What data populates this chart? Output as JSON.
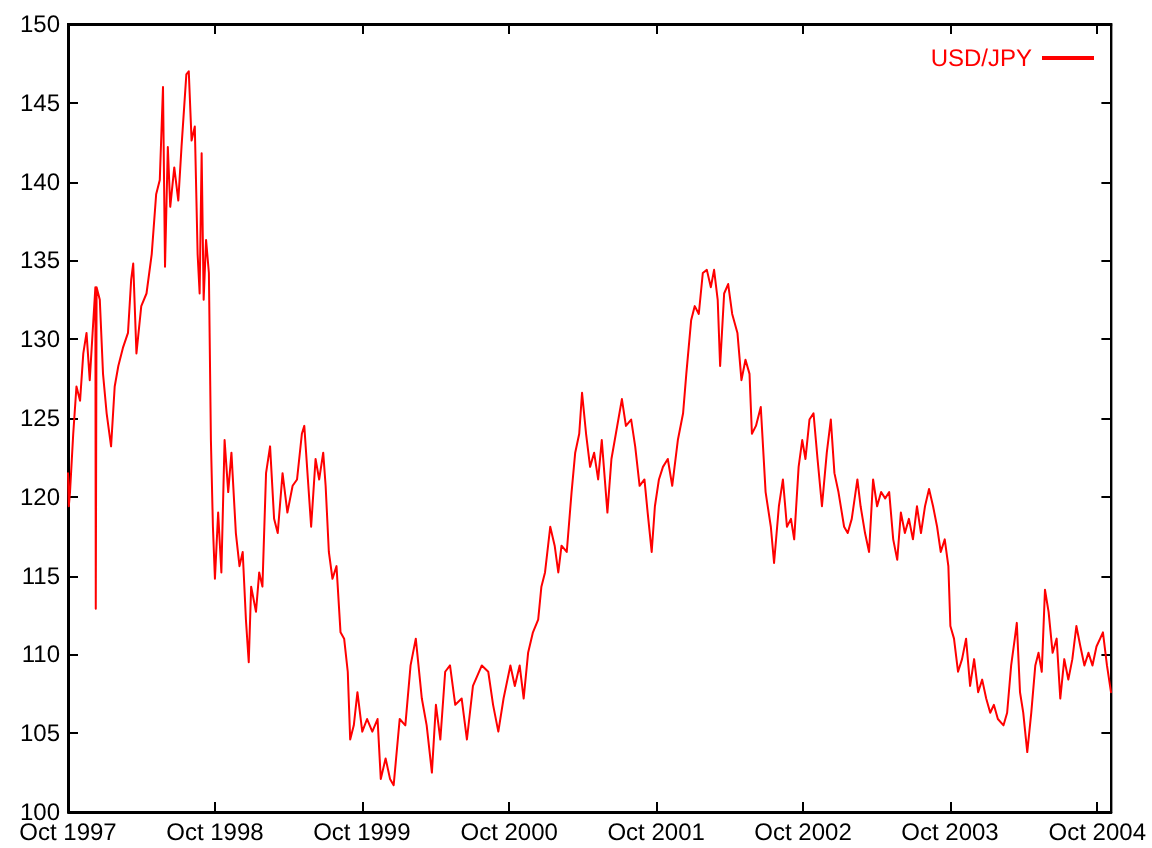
{
  "chart_data": {
    "type": "line",
    "legend": "top right",
    "grid": false,
    "marker": "none",
    "line_style": "solid",
    "xlim": [
      "1997-10-01",
      "2004-11-05"
    ],
    "ylim": [
      100,
      150
    ],
    "xticks": [
      {
        "value": "1997-10-01",
        "label": "Oct 1997"
      },
      {
        "value": "1998-10-01",
        "label": "Oct 1998"
      },
      {
        "value": "1999-10-01",
        "label": "Oct 1999"
      },
      {
        "value": "2000-10-01",
        "label": "Oct 2000"
      },
      {
        "value": "2001-10-01",
        "label": "Oct 2001"
      },
      {
        "value": "2002-10-01",
        "label": "Oct 2002"
      },
      {
        "value": "2003-10-01",
        "label": "Oct 2003"
      },
      {
        "value": "2004-10-01",
        "label": "Oct 2004"
      }
    ],
    "yticks": [
      100,
      105,
      110,
      115,
      120,
      125,
      130,
      135,
      140,
      145,
      150
    ],
    "x": [
      "1997-10-01",
      "1997-10-03",
      "1997-10-06",
      "1997-10-14",
      "1997-10-22",
      "1997-10-31",
      "1997-11-08",
      "1997-11-16",
      "1997-11-24",
      "1997-12-03",
      "1997-12-08",
      "1997-12-09",
      "1997-12-11",
      "1997-12-19",
      "1997-12-27",
      "1998-01-05",
      "1998-01-16",
      "1998-01-25",
      "1998-02-03",
      "1998-02-15",
      "1998-02-27",
      "1998-03-07",
      "1998-03-12",
      "1998-03-20",
      "1998-04-01",
      "1998-04-14",
      "1998-04-27",
      "1998-05-08",
      "1998-05-17",
      "1998-05-25",
      "1998-05-30",
      "1998-06-06",
      "1998-06-12",
      "1998-06-22",
      "1998-07-02",
      "1998-07-10",
      "1998-07-22",
      "1998-07-28",
      "1998-08-04",
      "1998-08-12",
      "1998-08-19",
      "1998-08-24",
      "1998-08-29",
      "1998-09-03",
      "1998-09-09",
      "1998-09-16",
      "1998-09-21",
      "1998-09-26",
      "1998-10-01",
      "1998-10-09",
      "1998-10-17",
      "1998-10-25",
      "1998-11-03",
      "1998-11-11",
      "1998-11-22",
      "1998-12-01",
      "1998-12-09",
      "1998-12-17",
      "1998-12-24",
      "1998-12-30",
      "1999-01-11",
      "1999-01-19",
      "1999-01-27",
      "1999-02-05",
      "1999-02-15",
      "1999-02-25",
      "1999-03-06",
      "1999-03-18",
      "1999-03-30",
      "1999-04-12",
      "1999-04-23",
      "1999-05-05",
      "1999-05-11",
      "1999-05-20",
      "1999-05-28",
      "1999-06-08",
      "1999-06-17",
      "1999-06-27",
      "1999-07-03",
      "1999-07-11",
      "1999-07-20",
      "1999-07-30",
      "1999-08-09",
      "1999-08-18",
      "1999-08-27",
      "1999-09-02",
      "1999-09-11",
      "1999-09-20",
      "1999-10-02",
      "1999-10-14",
      "1999-10-27",
      "1999-11-09",
      "1999-11-17",
      "1999-11-29",
      "1999-12-10",
      "1999-12-19",
      "2000-01-03",
      "2000-01-17",
      "2000-01-30",
      "2000-02-12",
      "2000-02-27",
      "2000-03-10",
      "2000-03-23",
      "2000-04-02",
      "2000-04-13",
      "2000-04-25",
      "2000-05-07",
      "2000-05-20",
      "2000-06-05",
      "2000-06-18",
      "2000-07-03",
      "2000-07-25",
      "2000-08-10",
      "2000-08-22",
      "2000-09-04",
      "2000-09-17",
      "2000-10-04",
      "2000-10-15",
      "2000-10-27",
      "2000-11-06",
      "2000-11-17",
      "2000-11-29",
      "2000-12-12",
      "2000-12-20",
      "2000-12-29",
      "2001-01-11",
      "2001-01-22",
      "2001-01-31",
      "2001-02-08",
      "2001-02-21",
      "2001-03-05",
      "2001-03-14",
      "2001-03-24",
      "2001-03-31",
      "2001-04-10",
      "2001-04-20",
      "2001-04-30",
      "2001-05-10",
      "2001-05-19",
      "2001-06-02",
      "2001-06-12",
      "2001-06-23",
      "2001-07-08",
      "2001-07-18",
      "2001-07-31",
      "2001-08-10",
      "2001-08-21",
      "2001-09-02",
      "2001-09-10",
      "2001-09-20",
      "2001-09-28",
      "2001-10-08",
      "2001-10-18",
      "2001-10-30",
      "2001-11-10",
      "2001-11-24",
      "2001-12-07",
      "2001-12-15",
      "2001-12-27",
      "2002-01-05",
      "2002-01-15",
      "2002-01-25",
      "2002-02-04",
      "2002-02-14",
      "2002-02-22",
      "2002-03-03",
      "2002-03-09",
      "2002-03-19",
      "2002-03-29",
      "2002-04-08",
      "2002-04-21",
      "2002-05-01",
      "2002-05-11",
      "2002-05-21",
      "2002-05-27",
      "2002-06-06",
      "2002-06-18",
      "2002-06-30",
      "2002-07-13",
      "2002-07-21",
      "2002-08-02",
      "2002-08-12",
      "2002-08-22",
      "2002-09-01",
      "2002-09-09",
      "2002-09-20",
      "2002-09-29",
      "2002-10-07",
      "2002-10-17",
      "2002-10-27",
      "2002-11-06",
      "2002-11-17",
      "2002-11-29",
      "2002-12-09",
      "2002-12-18",
      "2002-12-28",
      "2003-01-11",
      "2003-01-20",
      "2003-01-30",
      "2003-02-13",
      "2003-02-21",
      "2003-03-04",
      "2003-03-14",
      "2003-03-24",
      "2003-04-03",
      "2003-04-13",
      "2003-04-23",
      "2003-05-03",
      "2003-05-13",
      "2003-05-23",
      "2003-06-01",
      "2003-06-11",
      "2003-06-21",
      "2003-07-01",
      "2003-07-11",
      "2003-07-21",
      "2003-07-31",
      "2003-08-10",
      "2003-08-20",
      "2003-08-30",
      "2003-09-08",
      "2003-09-18",
      "2003-09-27",
      "2003-10-02",
      "2003-10-11",
      "2003-10-21",
      "2003-10-31",
      "2003-11-10",
      "2003-11-20",
      "2003-11-30",
      "2003-12-10",
      "2003-12-20",
      "2003-12-30",
      "2004-01-09",
      "2004-01-18",
      "2004-01-28",
      "2004-02-11",
      "2004-02-20",
      "2004-03-01",
      "2004-03-10",
      "2004-03-15",
      "2004-03-23",
      "2004-03-31",
      "2004-04-10",
      "2004-04-20",
      "2004-04-30",
      "2004-05-08",
      "2004-05-16",
      "2004-05-24",
      "2004-06-02",
      "2004-06-12",
      "2004-06-22",
      "2004-07-01",
      "2004-07-11",
      "2004-07-21",
      "2004-07-31",
      "2004-08-10",
      "2004-08-20",
      "2004-08-30",
      "2004-09-09",
      "2004-09-19",
      "2004-09-29",
      "2004-10-08",
      "2004-10-15",
      "2004-10-25",
      "2004-11-04"
    ],
    "series": [
      {
        "name": "USD/JPY",
        "color": "#ff0000",
        "values": [
          121.5,
          119.4,
          120.3,
          124,
          127,
          126.1,
          129.1,
          130.4,
          127.4,
          131.2,
          133.3,
          112.9,
          133.3,
          132.5,
          127.8,
          125.3,
          123.2,
          127,
          128.3,
          129.5,
          130.4,
          133.8,
          134.8,
          129.1,
          132.1,
          132.9,
          135.4,
          139.2,
          140.1,
          146.0,
          134.6,
          142.2,
          138.4,
          140.9,
          138.8,
          142.2,
          146.8,
          147.0,
          142.6,
          143.5,
          135.4,
          132.9,
          141.8,
          132.5,
          136.3,
          134.2,
          123.6,
          118.1,
          114.8,
          119.0,
          115.2,
          123.6,
          120.3,
          122.8,
          117.7,
          115.6,
          116.5,
          112.2,
          109.5,
          114.3,
          112.7,
          115.2,
          114.3,
          121.5,
          123.2,
          118.6,
          117.7,
          121.5,
          119,
          120.7,
          121.1,
          124,
          124.5,
          121.1,
          118.1,
          122.4,
          121.1,
          122.8,
          120.7,
          116.5,
          114.8,
          115.6,
          111.4,
          111,
          108.9,
          104.6,
          105.5,
          107.6,
          105.1,
          105.9,
          105.1,
          105.9,
          102.1,
          103.4,
          102.1,
          101.7,
          105.9,
          105.5,
          109.3,
          111,
          107.2,
          105.5,
          102.5,
          106.8,
          104.6,
          108.9,
          109.3,
          106.8,
          107.2,
          104.6,
          108,
          109.3,
          108.9,
          106.8,
          105.1,
          107.2,
          109.3,
          108,
          109.3,
          107.2,
          110.1,
          111.4,
          112.2,
          114.3,
          115.2,
          118.1,
          116.9,
          115.2,
          116.9,
          116.5,
          120.3,
          122.8,
          124,
          126.6,
          124,
          121.9,
          122.8,
          121.1,
          123.6,
          119,
          122.4,
          124,
          126.2,
          124.5,
          124.9,
          123.2,
          120.7,
          121.1,
          119,
          116.5,
          119.4,
          121.1,
          121.9,
          122.4,
          120.7,
          123.6,
          125.3,
          127.8,
          131.2,
          132.1,
          131.6,
          134.2,
          134.4,
          133.3,
          134.4,
          132.5,
          128.3,
          132.9,
          133.5,
          131.6,
          130.4,
          127.4,
          128.7,
          127.8,
          124,
          124.5,
          125.7,
          120.3,
          118.1,
          115.8,
          119.4,
          121.1,
          118.1,
          118.6,
          117.3,
          121.9,
          123.6,
          122.4,
          124.9,
          125.3,
          122.4,
          119.4,
          122.8,
          124.9,
          121.5,
          120.3,
          118.1,
          117.7,
          118.6,
          121.1,
          119.4,
          117.7,
          116.5,
          121.1,
          119.4,
          120.3,
          119.9,
          120.3,
          117.3,
          116,
          119,
          117.7,
          118.6,
          117.3,
          119.4,
          117.7,
          119.4,
          120.5,
          119.4,
          118.1,
          116.5,
          117.3,
          115.6,
          111.8,
          111,
          108.9,
          109.7,
          111,
          108,
          109.7,
          107.6,
          108.4,
          107.2,
          106.3,
          106.8,
          105.9,
          105.5,
          106.3,
          109.3,
          111,
          112,
          107.6,
          106.3,
          103.8,
          106.3,
          109.3,
          110.1,
          108.9,
          114.1,
          112.7,
          110.1,
          111,
          107.2,
          109.7,
          108.4,
          109.7,
          111.8,
          110.5,
          109.3,
          110.1,
          109.3,
          110.5,
          111,
          111.4,
          109.3,
          107.6
        ]
      }
    ]
  }
}
